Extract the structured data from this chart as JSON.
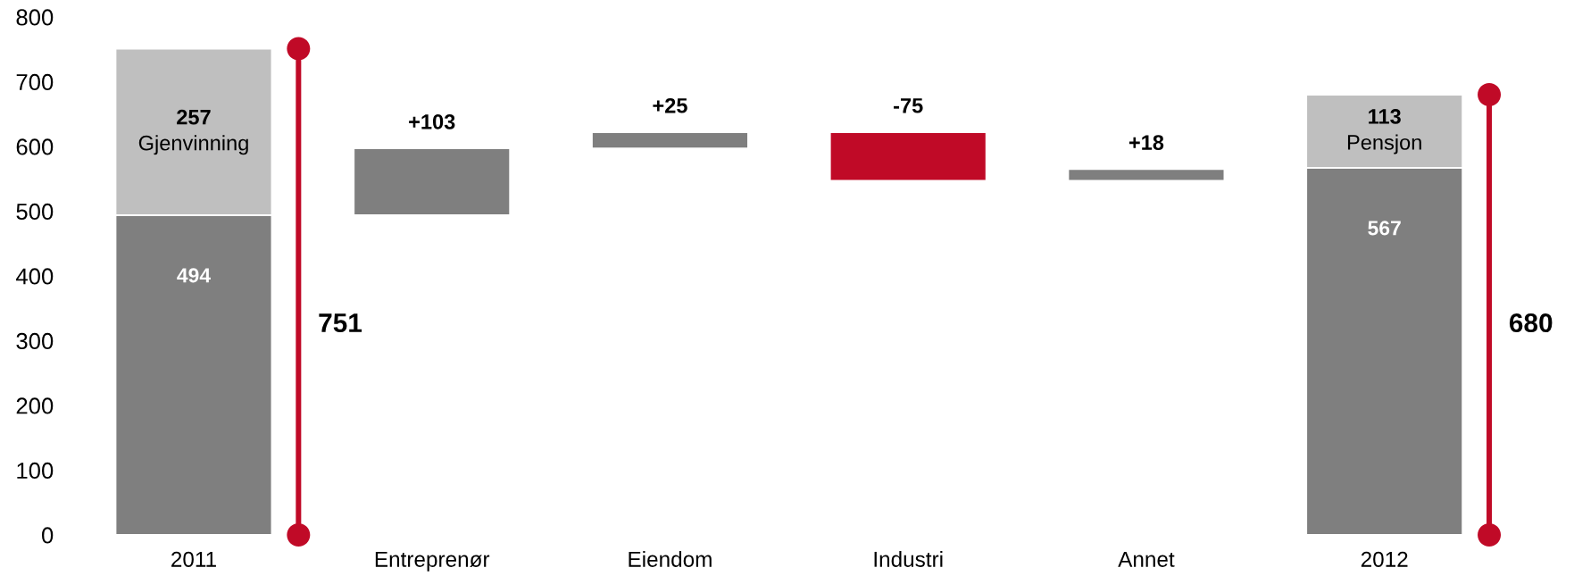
{
  "chart_data": {
    "type": "bar",
    "categories": [
      "2011",
      "Entreprenør",
      "Eiendom",
      "Industri",
      "Annet",
      "2012"
    ],
    "stacked": true,
    "series": [
      {
        "colors": [
          "#7f7f7f",
          "#7f7f7f",
          "#7f7f7f",
          "#c00a27",
          "#7f7f7f",
          "#7f7f7f"
        ],
        "values": [
          494,
          103,
          25,
          -75,
          18,
          567
        ],
        "base": [
          0,
          494,
          597,
          622,
          547,
          0
        ],
        "value_labels": [
          "494",
          "+103",
          "+25",
          "-75",
          "+18",
          "567"
        ]
      },
      {
        "color": "#bfbfbf",
        "values": [
          257,
          null,
          null,
          null,
          null,
          113
        ],
        "value_labels": [
          "257\nGjenvinning",
          null,
          null,
          null,
          null,
          "113\nPensjon"
        ]
      }
    ],
    "totals": [
      "751",
      null,
      null,
      null,
      null,
      "680"
    ],
    "ylim": [
      0,
      800
    ],
    "yticks": [
      0,
      100,
      200,
      300,
      400,
      500,
      600,
      700,
      800
    ]
  }
}
